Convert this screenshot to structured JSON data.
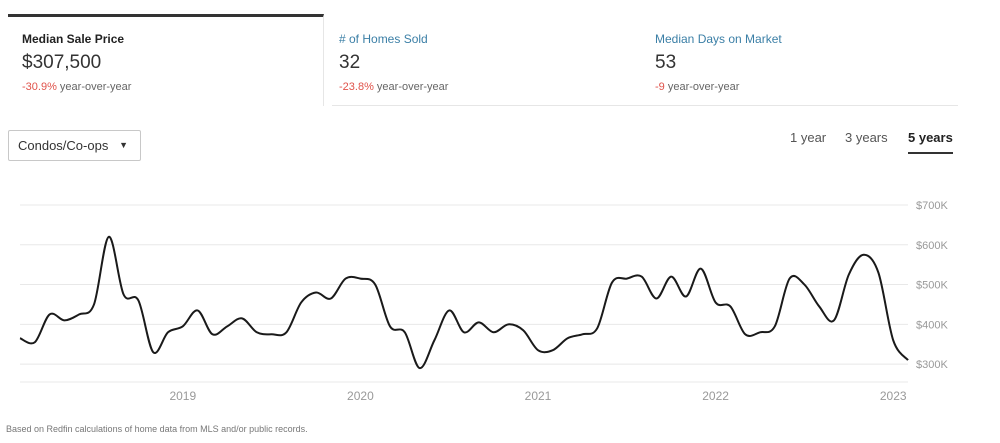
{
  "tabs": [
    {
      "label": "Median Sale Price",
      "value": "$307,500",
      "change": "-30.9%",
      "suffix": " year-over-year",
      "active": true
    },
    {
      "label": "# of Homes Sold",
      "value": "32",
      "change": "-23.8%",
      "suffix": " year-over-year",
      "active": false
    },
    {
      "label": "Median Days on Market",
      "value": "53",
      "change": "-9",
      "suffix": " year-over-year",
      "active": false
    }
  ],
  "property_filter": {
    "selected": "Condos/Co-ops"
  },
  "time_ranges": [
    {
      "label": "1 year",
      "selected": false
    },
    {
      "label": "3 years",
      "selected": false
    },
    {
      "label": "5 years",
      "selected": true
    }
  ],
  "footnote": "Based on Redfin calculations of home data from MLS and/or public records.",
  "colors": {
    "line": "#1a1a1a",
    "grid": "#e8e8e8",
    "tick_text": "#999999",
    "negative": "#e0524a",
    "link": "#3b7fa6"
  },
  "chart_data": {
    "type": "line",
    "series": [
      {
        "values": [
          [
            "2018-02",
            365
          ],
          [
            "2018-03",
            355
          ],
          [
            "2018-04",
            425
          ],
          [
            "2018-05",
            410
          ],
          [
            "2018-06",
            425
          ],
          [
            "2018-07",
            450
          ],
          [
            "2018-08",
            620
          ],
          [
            "2018-09",
            475
          ],
          [
            "2018-10",
            460
          ],
          [
            "2018-11",
            330
          ],
          [
            "2018-12",
            380
          ],
          [
            "2019-01",
            395
          ],
          [
            "2019-02",
            435
          ],
          [
            "2019-03",
            375
          ],
          [
            "2019-04",
            395
          ],
          [
            "2019-05",
            415
          ],
          [
            "2019-06",
            380
          ],
          [
            "2019-07",
            375
          ],
          [
            "2019-08",
            380
          ],
          [
            "2019-09",
            455
          ],
          [
            "2019-10",
            480
          ],
          [
            "2019-11",
            465
          ],
          [
            "2019-12",
            515
          ],
          [
            "2020-01",
            515
          ],
          [
            "2020-02",
            500
          ],
          [
            "2020-03",
            395
          ],
          [
            "2020-04",
            380
          ],
          [
            "2020-05",
            290
          ],
          [
            "2020-06",
            360
          ],
          [
            "2020-07",
            435
          ],
          [
            "2020-08",
            380
          ],
          [
            "2020-09",
            405
          ],
          [
            "2020-10",
            380
          ],
          [
            "2020-11",
            400
          ],
          [
            "2020-12",
            385
          ],
          [
            "2021-01",
            335
          ],
          [
            "2021-02",
            335
          ],
          [
            "2021-03",
            365
          ],
          [
            "2021-04",
            375
          ],
          [
            "2021-05",
            390
          ],
          [
            "2021-06",
            505
          ],
          [
            "2021-07",
            515
          ],
          [
            "2021-08",
            520
          ],
          [
            "2021-09",
            465
          ],
          [
            "2021-10",
            520
          ],
          [
            "2021-11",
            470
          ],
          [
            "2021-12",
            540
          ],
          [
            "2022-01",
            455
          ],
          [
            "2022-02",
            445
          ],
          [
            "2022-03",
            375
          ],
          [
            "2022-04",
            380
          ],
          [
            "2022-05",
            395
          ],
          [
            "2022-06",
            515
          ],
          [
            "2022-07",
            500
          ],
          [
            "2022-08",
            445
          ],
          [
            "2022-09",
            410
          ],
          [
            "2022-10",
            525
          ],
          [
            "2022-11",
            575
          ],
          [
            "2022-12",
            530
          ],
          [
            "2023-01",
            360
          ],
          [
            "2023-02",
            310
          ]
        ]
      }
    ],
    "x_ticks": [
      "2019",
      "2020",
      "2021",
      "2022",
      "2023"
    ],
    "y_ticks": [
      "$300K",
      "$400K",
      "$500K",
      "$600K",
      "$700K"
    ],
    "y_tick_values": [
      300,
      400,
      500,
      600,
      700
    ],
    "x_range": [
      "2018-02",
      "2023-02"
    ],
    "ylim": [
      250,
      700
    ],
    "grid": true
  }
}
